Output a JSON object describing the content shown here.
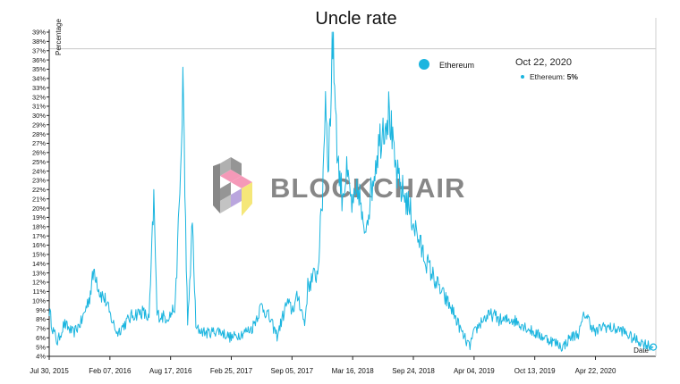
{
  "chart_data": {
    "type": "line",
    "title": "Uncle rate",
    "ylabel": "Percentage",
    "xlabel": "Date",
    "y_unit": "%",
    "ylim": [
      4,
      39
    ],
    "x_ticks": [
      "Jul 30, 2015",
      "Feb 07, 2016",
      "Aug 17, 2016",
      "Feb 25, 2017",
      "Sep 05, 2017",
      "Mar 16, 2018",
      "Sep 24, 2018",
      "Apr 04, 2019",
      "Oct 13, 2019",
      "Apr 22, 2020"
    ],
    "y_ticks": [
      "4%",
      "5%",
      "6%",
      "7%",
      "8%",
      "9%",
      "10%",
      "11%",
      "12%",
      "13%",
      "14%",
      "15%",
      "16%",
      "17%",
      "18%",
      "19%",
      "20%",
      "21%",
      "22%",
      "23%",
      "24%",
      "25%",
      "26%",
      "27%",
      "28%",
      "29%",
      "30%",
      "31%",
      "32%",
      "33%",
      "34%",
      "35%",
      "36%",
      "37%",
      "38%",
      "39%"
    ],
    "grid": false,
    "reference_line_y": 37.2,
    "legend": {
      "position": "top-right",
      "entries": [
        "Ethereum"
      ]
    },
    "tooltip": {
      "date": "Oct 22, 2020",
      "series": "Ethereum",
      "value_label": "5%"
    },
    "series": [
      {
        "name": "Ethereum",
        "color": "#1bb5df",
        "points": [
          [
            "2015-07-30",
            9.0
          ],
          [
            "2015-08-10",
            7.0
          ],
          [
            "2015-08-25",
            5.5
          ],
          [
            "2015-09-15",
            7.5
          ],
          [
            "2015-10-15",
            6.5
          ],
          [
            "2015-11-10",
            7.8
          ],
          [
            "2015-12-05",
            10.5
          ],
          [
            "2015-12-20",
            13.5
          ],
          [
            "2016-01-05",
            11.0
          ],
          [
            "2016-01-25",
            10.0
          ],
          [
            "2016-02-07",
            8.5
          ],
          [
            "2016-03-01",
            6.5
          ],
          [
            "2016-03-25",
            7.5
          ],
          [
            "2016-04-20",
            8.5
          ],
          [
            "2016-05-20",
            8.8
          ],
          [
            "2016-06-10",
            8.0
          ],
          [
            "2016-06-25",
            21.0
          ],
          [
            "2016-07-05",
            8.5
          ],
          [
            "2016-08-01",
            8.2
          ],
          [
            "2016-08-17",
            8.5
          ],
          [
            "2016-09-01",
            9.5
          ],
          [
            "2016-09-20",
            26.0
          ],
          [
            "2016-09-25",
            34.8
          ],
          [
            "2016-10-01",
            22.0
          ],
          [
            "2016-10-10",
            7.0
          ],
          [
            "2016-10-25",
            18.5
          ],
          [
            "2016-11-05",
            7.0
          ],
          [
            "2016-12-10",
            6.5
          ],
          [
            "2017-01-15",
            6.8
          ],
          [
            "2017-02-25",
            6.0
          ],
          [
            "2017-04-01",
            6.5
          ],
          [
            "2017-05-01",
            7.0
          ],
          [
            "2017-06-01",
            9.5
          ],
          [
            "2017-06-20",
            8.5
          ],
          [
            "2017-07-20",
            6.2
          ],
          [
            "2017-08-20",
            9.8
          ],
          [
            "2017-09-05",
            9.0
          ],
          [
            "2017-09-25",
            10.5
          ],
          [
            "2017-10-15",
            7.5
          ],
          [
            "2017-10-25",
            11.5
          ],
          [
            "2017-11-10",
            12.5
          ],
          [
            "2017-11-25",
            13.0
          ],
          [
            "2017-12-10",
            21.0
          ],
          [
            "2017-12-20",
            32.5
          ],
          [
            "2017-12-28",
            25.0
          ],
          [
            "2018-01-05",
            30.0
          ],
          [
            "2018-01-10",
            39.0
          ],
          [
            "2018-01-18",
            34.0
          ],
          [
            "2018-01-28",
            25.0
          ],
          [
            "2018-02-10",
            21.5
          ],
          [
            "2018-02-25",
            23.5
          ],
          [
            "2018-03-16",
            20.0
          ],
          [
            "2018-04-05",
            22.0
          ],
          [
            "2018-04-20",
            17.0
          ],
          [
            "2018-05-10",
            21.0
          ],
          [
            "2018-06-01",
            26.0
          ],
          [
            "2018-06-20",
            29.0
          ],
          [
            "2018-07-10",
            30.5
          ],
          [
            "2018-07-25",
            25.0
          ],
          [
            "2018-08-10",
            22.5
          ],
          [
            "2018-09-01",
            21.0
          ],
          [
            "2018-09-24",
            18.5
          ],
          [
            "2018-10-20",
            15.5
          ],
          [
            "2018-11-20",
            13.0
          ],
          [
            "2018-12-20",
            11.0
          ],
          [
            "2019-01-25",
            9.0
          ],
          [
            "2019-02-25",
            6.5
          ],
          [
            "2019-03-20",
            5.0
          ],
          [
            "2019-04-04",
            6.5
          ],
          [
            "2019-05-01",
            8.0
          ],
          [
            "2019-06-01",
            8.5
          ],
          [
            "2019-07-01",
            7.8
          ],
          [
            "2019-08-01",
            8.0
          ],
          [
            "2019-09-01",
            7.5
          ],
          [
            "2019-10-13",
            6.5
          ],
          [
            "2019-11-15",
            6.0
          ],
          [
            "2019-12-15",
            5.5
          ],
          [
            "2020-01-10",
            5.0
          ],
          [
            "2020-02-01",
            6.0
          ],
          [
            "2020-03-01",
            6.5
          ],
          [
            "2020-03-20",
            8.7
          ],
          [
            "2020-04-22",
            6.5
          ],
          [
            "2020-05-15",
            7.3
          ],
          [
            "2020-06-15",
            7.0
          ],
          [
            "2020-07-15",
            6.8
          ],
          [
            "2020-08-15",
            6.0
          ],
          [
            "2020-09-15",
            5.5
          ],
          [
            "2020-10-22",
            5.0
          ]
        ]
      }
    ]
  },
  "watermark": {
    "text": "BLOCKCHAIR"
  }
}
